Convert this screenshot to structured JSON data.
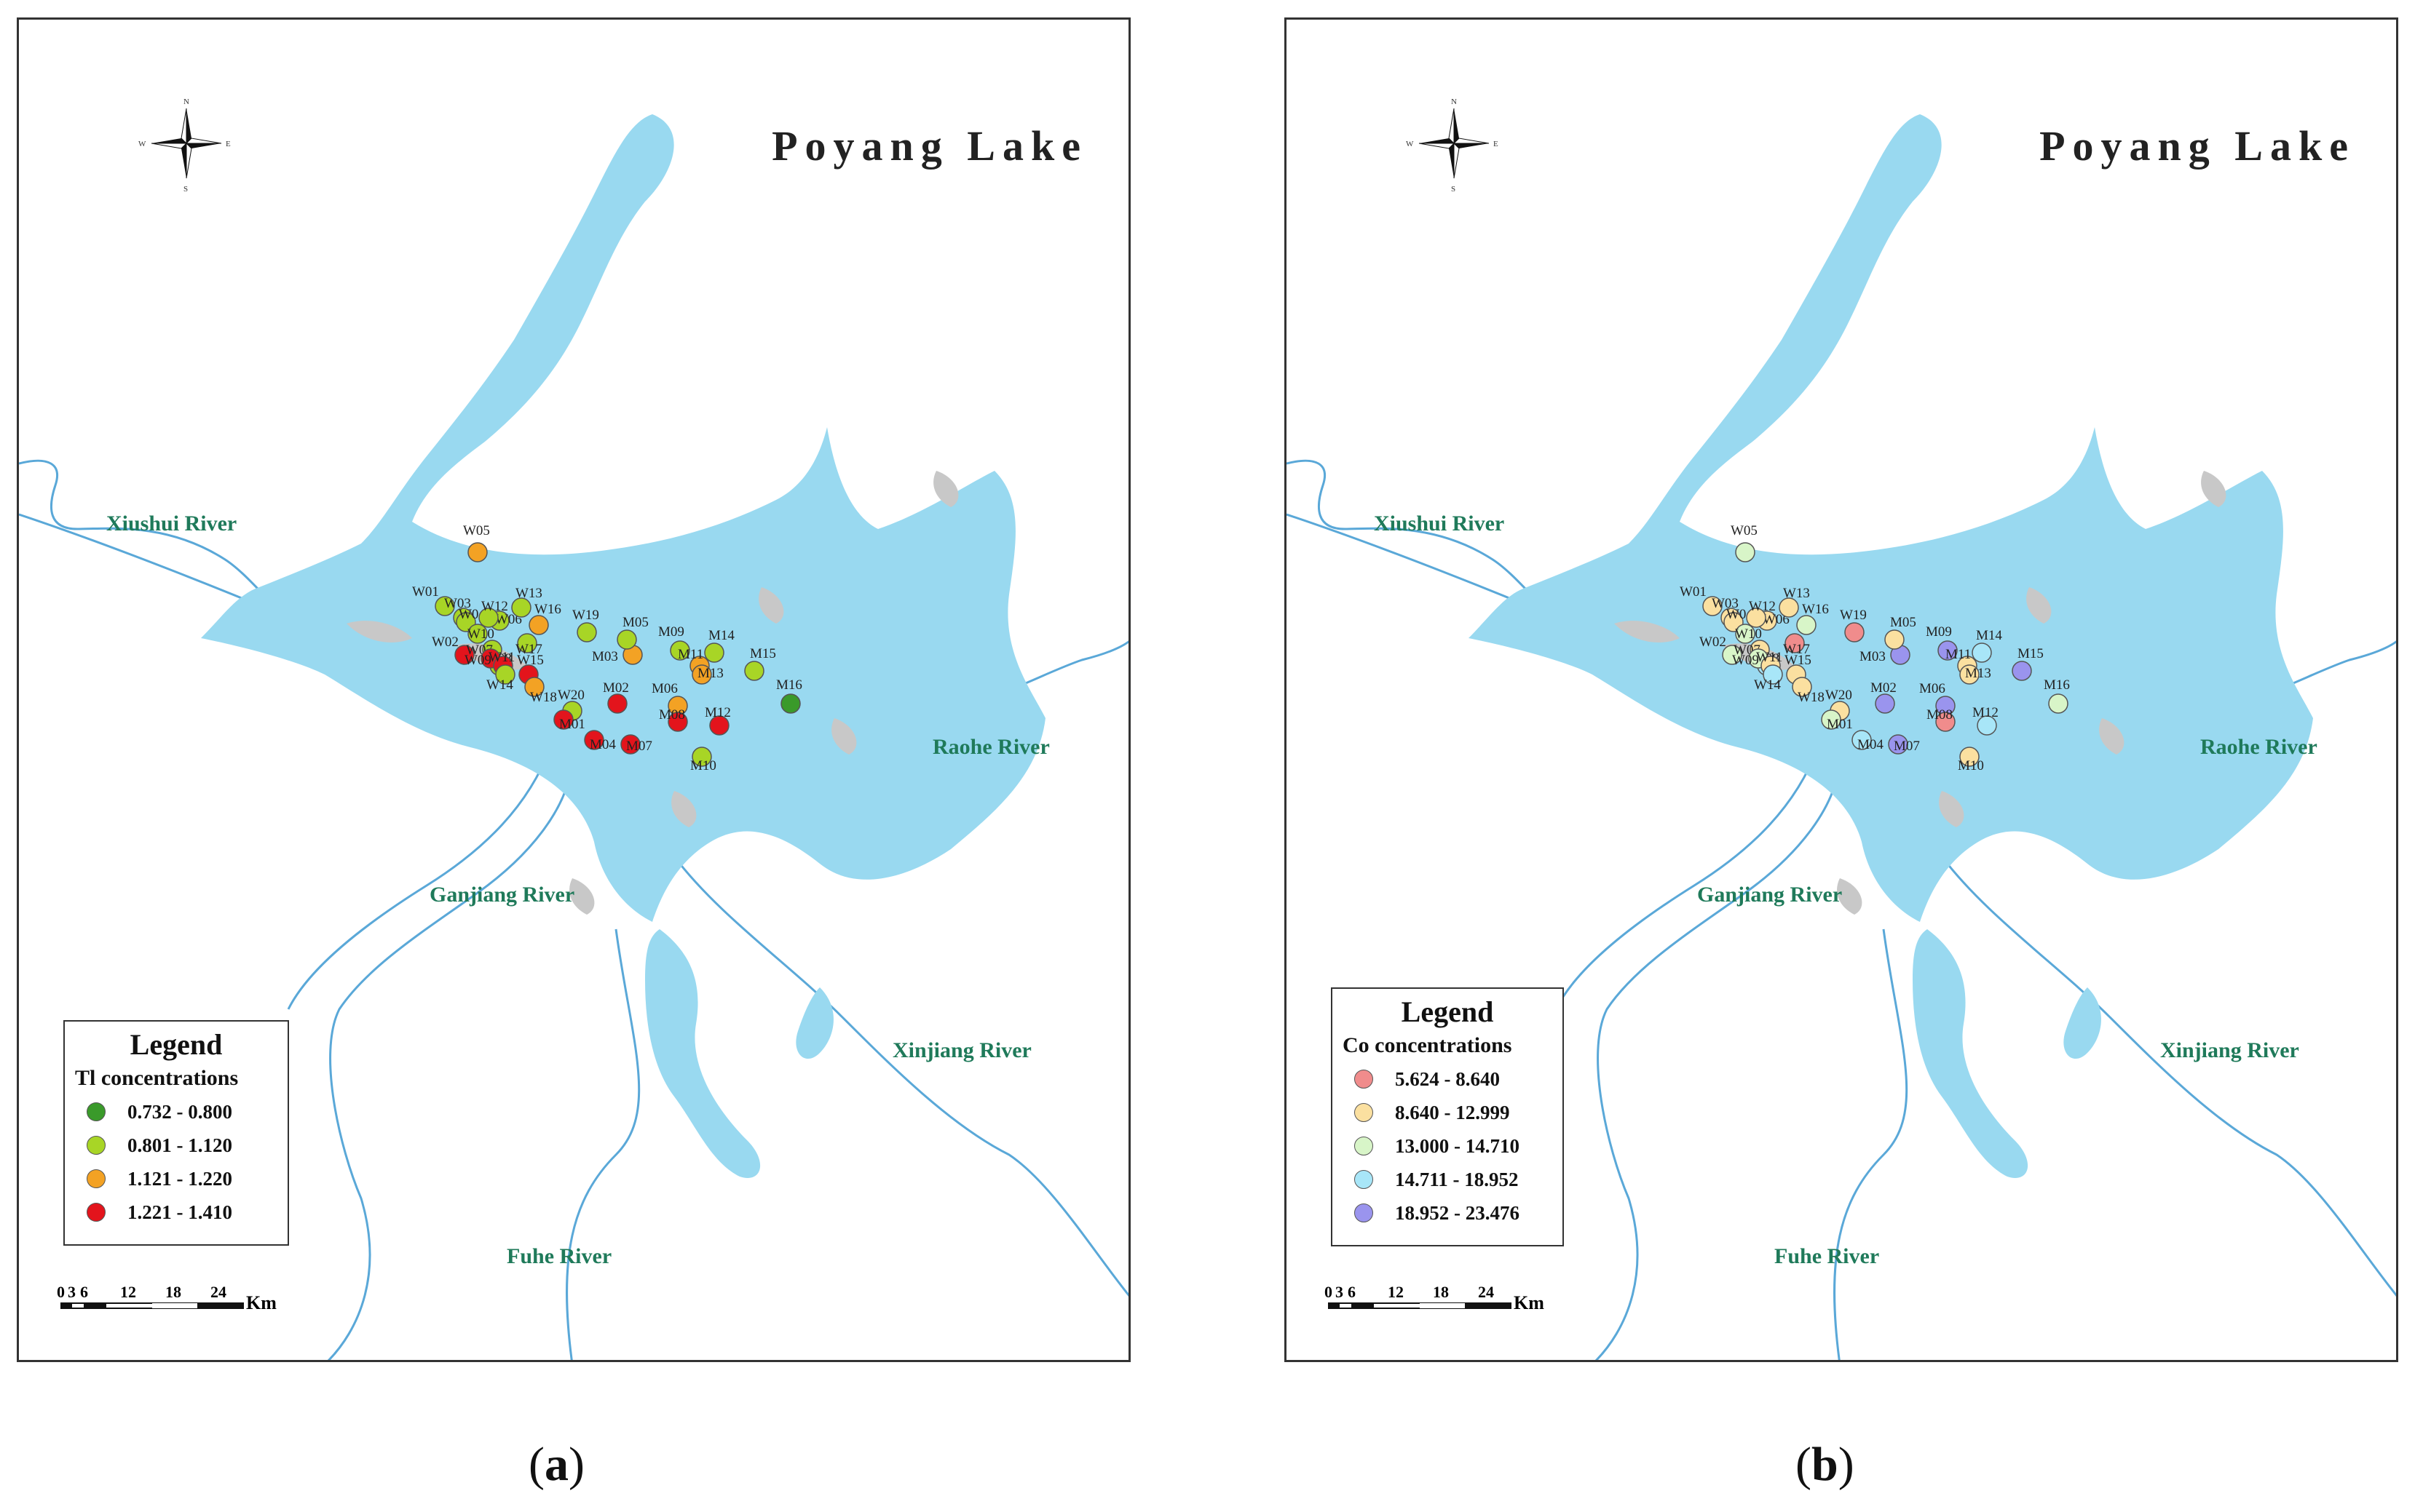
{
  "title": "Poyang Lake",
  "panels": [
    {
      "caption_letter": "a",
      "legend_title": "Legend",
      "legend_subtitle": "Tl concentrations",
      "classes": [
        {
          "label": "0.732 - 0.800",
          "color": "#3a9a2a"
        },
        {
          "label": "0.801 - 1.120",
          "color": "#a8d526"
        },
        {
          "label": "1.121 - 1.220",
          "color": "#f3a224"
        },
        {
          "label": "1.221 - 1.410",
          "color": "#e3141c"
        }
      ],
      "sites": [
        {
          "id": "W01",
          "cls": 1
        },
        {
          "id": "W02",
          "cls": 3
        },
        {
          "id": "W03",
          "cls": 1
        },
        {
          "id": "W04",
          "cls": 1
        },
        {
          "id": "W05",
          "cls": 2
        },
        {
          "id": "W06",
          "cls": 1
        },
        {
          "id": "W07",
          "cls": 1
        },
        {
          "id": "W08",
          "cls": 1
        },
        {
          "id": "W09",
          "cls": 3
        },
        {
          "id": "W10",
          "cls": 1
        },
        {
          "id": "W11",
          "cls": 3
        },
        {
          "id": "W12",
          "cls": 1
        },
        {
          "id": "W13",
          "cls": 1
        },
        {
          "id": "W14",
          "cls": 1
        },
        {
          "id": "W15",
          "cls": 3
        },
        {
          "id": "W16",
          "cls": 2
        },
        {
          "id": "W17",
          "cls": 1
        },
        {
          "id": "W18",
          "cls": 2
        },
        {
          "id": "W19",
          "cls": 1
        },
        {
          "id": "W20",
          "cls": 1
        },
        {
          "id": "M01",
          "cls": 3
        },
        {
          "id": "M02",
          "cls": 3
        },
        {
          "id": "M03",
          "cls": 2
        },
        {
          "id": "M04",
          "cls": 3
        },
        {
          "id": "M05",
          "cls": 1
        },
        {
          "id": "M06",
          "cls": 2
        },
        {
          "id": "M07",
          "cls": 3
        },
        {
          "id": "M08",
          "cls": 3
        },
        {
          "id": "M09",
          "cls": 1
        },
        {
          "id": "M10",
          "cls": 1
        },
        {
          "id": "M11",
          "cls": 2
        },
        {
          "id": "M12",
          "cls": 3
        },
        {
          "id": "M13",
          "cls": 2
        },
        {
          "id": "M14",
          "cls": 1
        },
        {
          "id": "M15",
          "cls": 1
        },
        {
          "id": "M16",
          "cls": 0
        }
      ]
    },
    {
      "caption_letter": "b",
      "legend_title": "Legend",
      "legend_subtitle": "Co concentrations",
      "classes": [
        {
          "label": "5.624 - 8.640",
          "color": "#f08c8c"
        },
        {
          "label": "8.640 - 12.999",
          "color": "#fbe0a0"
        },
        {
          "label": "13.000 - 14.710",
          "color": "#d8f5c8"
        },
        {
          "label": "14.711 - 18.952",
          "color": "#a8e6f8"
        },
        {
          "label": "18.952 - 23.476",
          "color": "#9a94ee"
        }
      ],
      "sites": [
        {
          "id": "W01",
          "cls": 1
        },
        {
          "id": "W02",
          "cls": 2
        },
        {
          "id": "W03",
          "cls": 1
        },
        {
          "id": "W04",
          "cls": 1
        },
        {
          "id": "W05",
          "cls": 2
        },
        {
          "id": "W06",
          "cls": 1
        },
        {
          "id": "W07",
          "cls": 1
        },
        {
          "id": "W08",
          "cls": 3
        },
        {
          "id": "W09",
          "cls": 2
        },
        {
          "id": "W10",
          "cls": 2
        },
        {
          "id": "W11",
          "cls": 1
        },
        {
          "id": "W12",
          "cls": 1
        },
        {
          "id": "W13",
          "cls": 1
        },
        {
          "id": "W14",
          "cls": 3
        },
        {
          "id": "W15",
          "cls": 1
        },
        {
          "id": "W16",
          "cls": 2
        },
        {
          "id": "W17",
          "cls": 0
        },
        {
          "id": "W18",
          "cls": 1
        },
        {
          "id": "W19",
          "cls": 0
        },
        {
          "id": "W20",
          "cls": 1
        },
        {
          "id": "M01",
          "cls": 2
        },
        {
          "id": "M02",
          "cls": 4
        },
        {
          "id": "M03",
          "cls": 4
        },
        {
          "id": "M04",
          "cls": 3
        },
        {
          "id": "M05",
          "cls": 1
        },
        {
          "id": "M06",
          "cls": 4
        },
        {
          "id": "M07",
          "cls": 4
        },
        {
          "id": "M08",
          "cls": 0
        },
        {
          "id": "M09",
          "cls": 4
        },
        {
          "id": "M10",
          "cls": 1
        },
        {
          "id": "M11",
          "cls": 1
        },
        {
          "id": "M12",
          "cls": 3
        },
        {
          "id": "M13",
          "cls": 1
        },
        {
          "id": "M14",
          "cls": 3
        },
        {
          "id": "M15",
          "cls": 4
        },
        {
          "id": "M16",
          "cls": 2
        }
      ]
    }
  ],
  "rivers": [
    "Xiushui River",
    "Raohe River",
    "Ganjiang River",
    "Xinjiang River",
    "Fuhe River"
  ],
  "compass": {
    "n": "N",
    "s": "S",
    "e": "E",
    "w": "W"
  },
  "scale": {
    "ticks": [
      "0",
      "3",
      "6",
      "12",
      "18",
      "24"
    ],
    "unit": "Km"
  },
  "colors": {
    "lake": "#99d9f0",
    "river": "#5aa8d8",
    "land_patches": "#c8c8c8",
    "river_label": "#1f7a5a"
  }
}
